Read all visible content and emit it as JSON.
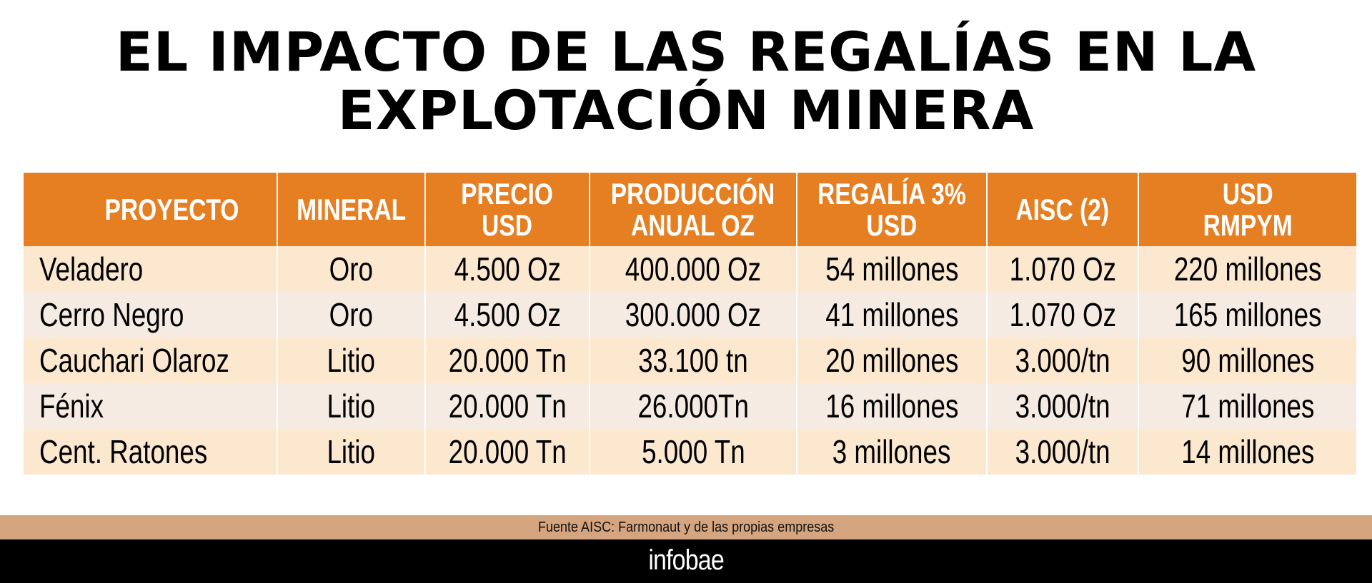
{
  "title": {
    "line1": "EL IMPACTO DE LAS REGALÍAS EN LA",
    "line2": "EXPLOTACIÓN MINERA"
  },
  "table": {
    "headers": [
      {
        "l1": "PROYECTO",
        "l2": ""
      },
      {
        "l1": "MINERAL",
        "l2": ""
      },
      {
        "l1": "PRECIO",
        "l2": "USD"
      },
      {
        "l1": "PRODUCCIÓN",
        "l2": "ANUAL OZ"
      },
      {
        "l1": "REGALÍA 3%",
        "l2": "USD"
      },
      {
        "l1": "AISC (2)",
        "l2": ""
      },
      {
        "l1": "USD",
        "l2": "RMPYM"
      }
    ],
    "rows": [
      [
        "Veladero",
        "Oro",
        "4.500 Oz",
        "400.000 Oz",
        "54 millones",
        "1.070 Oz",
        "220 millones"
      ],
      [
        "Cerro Negro",
        "Oro",
        "4.500 Oz",
        "300.000 Oz",
        "41 millones",
        "1.070 Oz",
        "165 millones"
      ],
      [
        "Cauchari Olaroz",
        "Litio",
        "20.000 Tn",
        "33.100 tn",
        "20 millones",
        "3.000/tn",
        "90 millones"
      ],
      [
        "Fénix",
        "Litio",
        "20.000 Tn",
        "26.000Tn",
        "16 millones",
        "3.000/tn",
        "71 millones"
      ],
      [
        "Cent. Ratones",
        "Litio",
        "20.000 Tn",
        "5.000 Tn",
        "3 millones",
        "3.000/tn",
        "14 millones"
      ]
    ]
  },
  "footer": {
    "source": "Fuente AISC: Farmonaut y de las propias empresas",
    "brand": "infobae"
  }
}
